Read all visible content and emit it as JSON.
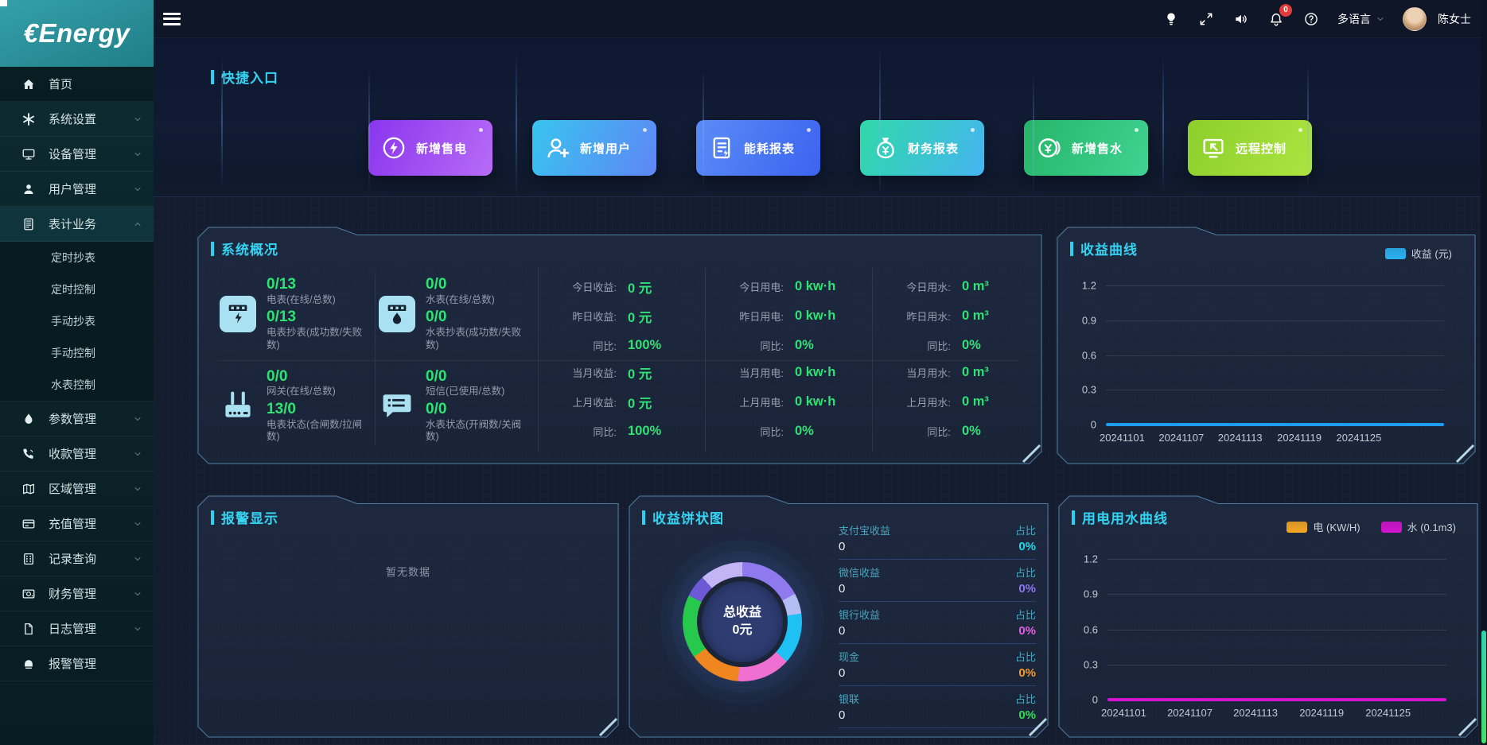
{
  "brand": {
    "name": "€Energy"
  },
  "topbar": {
    "language": "多语言",
    "user_name": "陈女士",
    "badge_count": "0"
  },
  "sidebar": {
    "items": [
      {
        "label": "首页",
        "icon": "home",
        "active": true
      },
      {
        "label": "系统设置",
        "icon": "settings",
        "chevron": "down"
      },
      {
        "label": "设备管理",
        "icon": "device",
        "chevron": "down"
      },
      {
        "label": "用户管理",
        "icon": "user",
        "chevron": "down"
      },
      {
        "label": "表计业务",
        "icon": "meter",
        "chevron": "up",
        "expanded": true,
        "children": [
          "定时抄表",
          "定时控制",
          "手动抄表",
          "手动控制",
          "水表控制"
        ]
      },
      {
        "label": "参数管理",
        "icon": "param",
        "chevron": "down"
      },
      {
        "label": "收款管理",
        "icon": "payment",
        "chevron": "down"
      },
      {
        "label": "区域管理",
        "icon": "region",
        "chevron": "down"
      },
      {
        "label": "充值管理",
        "icon": "recharge",
        "chevron": "down"
      },
      {
        "label": "记录查询",
        "icon": "records",
        "chevron": "down"
      },
      {
        "label": "财务管理",
        "icon": "finance",
        "chevron": "down"
      },
      {
        "label": "日志管理",
        "icon": "logs",
        "chevron": "down"
      },
      {
        "label": "报警管理",
        "icon": "alarm"
      }
    ]
  },
  "quick_entry": {
    "title": "快捷入口",
    "buttons": [
      {
        "label": "新增售电",
        "icon": "bolt-circle",
        "color_from": "#8a35ee",
        "color_to": "#b76cf6"
      },
      {
        "label": "新增用户",
        "icon": "user-plus",
        "color_from": "#38c4ef",
        "color_to": "#5f86f5"
      },
      {
        "label": "能耗报表",
        "icon": "report",
        "color_from": "#5a8cf7",
        "color_to": "#3c63ef"
      },
      {
        "label": "财务报表",
        "icon": "money-bag",
        "color_from": "#2fd9a8",
        "color_to": "#46b4f1"
      },
      {
        "label": "新增售水",
        "icon": "coin",
        "color_from": "#27b468",
        "color_to": "#3fd392"
      },
      {
        "label": "远程控制",
        "icon": "remote",
        "color_from": "#8ccf2b",
        "color_to": "#ace43f"
      }
    ]
  },
  "system_overview": {
    "title": "系统概况",
    "meters": [
      {
        "icon": "electric-meter",
        "value1": "0/13",
        "caption1": "电表(在线/总数)",
        "value2": "0/13",
        "caption2": "电表抄表(成功数/失败数)"
      },
      {
        "icon": "water-meter",
        "value1": "0/0",
        "caption1": "水表(在线/总数)",
        "value2": "0/0",
        "caption2": "水表抄表(成功数/失败数)"
      },
      {
        "icon": "gateway",
        "value1": "0/0",
        "caption1": "网关(在线/总数)",
        "value2": "13/0",
        "caption2": "电表状态(合闸数/拉闸数)"
      },
      {
        "icon": "sms",
        "value1": "0/0",
        "caption1": "短信(已使用/总数)",
        "value2": "0/0",
        "caption2": "水表状态(开阀数/关阀数)"
      }
    ],
    "stat_columns": [
      {
        "rows": [
          {
            "label": "今日收益:",
            "value": "0 元"
          },
          {
            "label": "昨日收益:",
            "value": "0 元"
          },
          {
            "label": "同比:",
            "value": "100%"
          },
          {
            "label": "当月收益:",
            "value": "0 元"
          },
          {
            "label": "上月收益:",
            "value": "0 元"
          },
          {
            "label": "同比:",
            "value": "100%"
          }
        ]
      },
      {
        "rows": [
          {
            "label": "今日用电:",
            "value": "0 kw·h"
          },
          {
            "label": "昨日用电:",
            "value": "0 kw·h"
          },
          {
            "label": "同比:",
            "value": "0%"
          },
          {
            "label": "当月用电:",
            "value": "0 kw·h"
          },
          {
            "label": "上月用电:",
            "value": "0 kw·h"
          },
          {
            "label": "同比:",
            "value": "0%"
          }
        ]
      },
      {
        "rows": [
          {
            "label": "今日用水:",
            "value": "0 m³"
          },
          {
            "label": "昨日用水:",
            "value": "0 m³"
          },
          {
            "label": "同比:",
            "value": "0%"
          },
          {
            "label": "当月用水:",
            "value": "0 m³"
          },
          {
            "label": "上月用水:",
            "value": "0 m³"
          },
          {
            "label": "同比:",
            "value": "0%"
          }
        ]
      }
    ]
  },
  "alarm_panel": {
    "title": "报警显示",
    "empty_text": "暂无数据"
  },
  "pie_panel": {
    "title": "收益饼状图",
    "center_label": "总收益",
    "center_value": "0元",
    "ratio_label": "占比",
    "items": [
      {
        "label": "支付宝收益",
        "value": "0",
        "ratio": "0%",
        "color": "#1fd8e8"
      },
      {
        "label": "微信收益",
        "value": "0",
        "ratio": "0%",
        "color": "#8d75f2"
      },
      {
        "label": "银行收益",
        "value": "0",
        "ratio": "0%",
        "color": "#e35ee0"
      },
      {
        "label": "现金",
        "value": "0",
        "ratio": "0%",
        "color": "#f59a23"
      },
      {
        "label": "银联",
        "value": "0",
        "ratio": "0%",
        "color": "#2fdd55"
      }
    ],
    "segments": [
      {
        "color": "#8f79ee",
        "deg": 62
      },
      {
        "color": "#b3bdf4",
        "deg": 20
      },
      {
        "color": "#1fc0f4",
        "deg": 50
      },
      {
        "color": "#f070d2",
        "deg": 52
      },
      {
        "color": "#f0861f",
        "deg": 50
      },
      {
        "color": "#27c94c",
        "deg": 62
      },
      {
        "color": "#6d59d6",
        "deg": 22
      },
      {
        "color": "#c3b4f6",
        "deg": 42
      }
    ]
  },
  "chart_data": [
    {
      "type": "line",
      "title": "收益曲线",
      "legend": [
        {
          "name": "收益 (元)",
          "color": "#2bb3f3"
        }
      ],
      "legend_position": "top-right",
      "grid": true,
      "x_labels": [
        "20241101",
        "20241107",
        "20241113",
        "20241119",
        "20241125"
      ],
      "yticks": [
        "1.2",
        "0.9",
        "0.6",
        "0.3",
        "0"
      ],
      "ylim": [
        0,
        1.2
      ],
      "series": [
        {
          "name": "收益 (元)",
          "color": "#1e9ded",
          "values": [
            0,
            0,
            0,
            0,
            0
          ]
        }
      ]
    },
    {
      "type": "pie",
      "title": "收益饼状图",
      "center_label": "总收益",
      "center_value": "0元",
      "slices": [
        {
          "name": "支付宝收益",
          "value": 0,
          "ratio": "0%"
        },
        {
          "name": "微信收益",
          "value": 0,
          "ratio": "0%"
        },
        {
          "name": "银行收益",
          "value": 0,
          "ratio": "0%"
        },
        {
          "name": "现金",
          "value": 0,
          "ratio": "0%"
        },
        {
          "name": "银联",
          "value": 0,
          "ratio": "0%"
        }
      ]
    },
    {
      "type": "line",
      "title": "用电用水曲线",
      "legend": [
        {
          "name": "电 (KW/H)",
          "color": "#f6a623"
        },
        {
          "name": "水 (0.1m3)",
          "color": "#d414cf"
        }
      ],
      "legend_position": "top-right",
      "grid": true,
      "x_labels": [
        "20241101",
        "20241107",
        "20241113",
        "20241119",
        "20241125"
      ],
      "yticks": [
        "1.2",
        "0.9",
        "0.6",
        "0.3",
        "0"
      ],
      "ylim": [
        0,
        1.2
      ],
      "series": [
        {
          "name": "电 (KW/H)",
          "color": "#f6a623",
          "values": [
            0,
            0,
            0,
            0,
            0
          ]
        },
        {
          "name": "水 (0.1m3)",
          "color": "#d414cf",
          "values": [
            0,
            0,
            0,
            0,
            0
          ]
        }
      ]
    }
  ]
}
